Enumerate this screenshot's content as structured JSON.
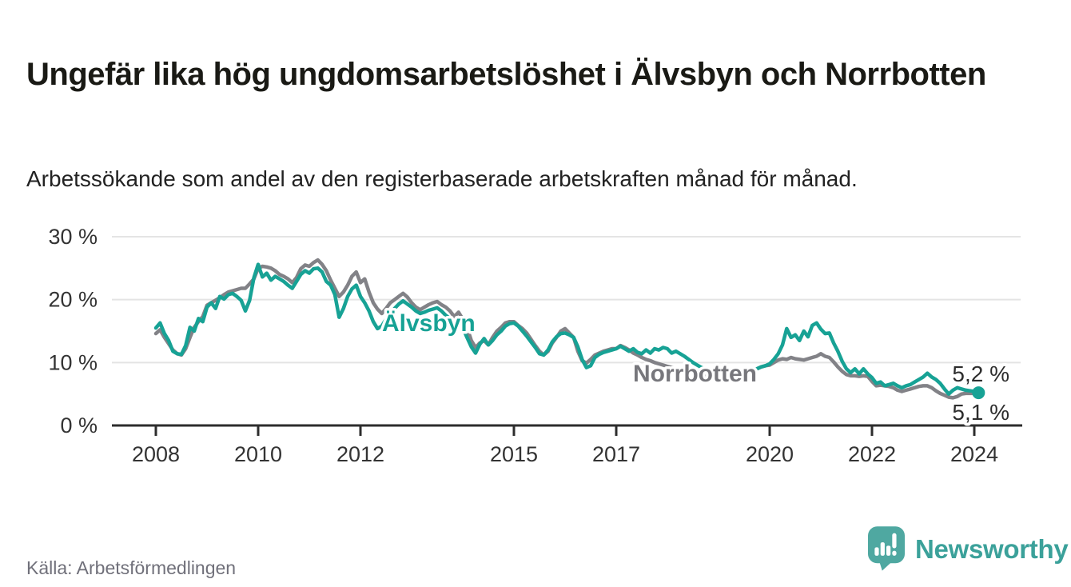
{
  "header": {
    "title": "Ungefär lika hög ungdomsarbetslöshet i Älvsbyn och Norrbotten",
    "subtitle": "Arbetssökande som andel av den registerbaserade arbetskraften månad för månad."
  },
  "footer": {
    "source": "Källa: Arbetsförmedlingen",
    "brand_name": "Newsworthy",
    "brand_logo_icon": "speech-bubble-bar-chart-icon"
  },
  "colors": {
    "alvsbyn_line": "#17a295",
    "norrbotten_line": "#828287",
    "norrbotten_label": "#77777c",
    "grid": "#e4e4e4",
    "axis": "#2d2d2d",
    "tick_text": "#333333",
    "logo_mark": "#4fa8a1",
    "logo_text": "#3ba19a"
  },
  "chart_data": {
    "type": "line",
    "title": "Ungefär lika hög ungdomsarbetslöshet i Älvsbyn och Norrbotten",
    "subtitle": "Arbetssökande som andel av den registerbaserade arbetskraften månad för månad.",
    "x_start": "2008-01",
    "x_end": "2024-02",
    "x_unit": "month",
    "ylim": [
      0,
      30
    ],
    "grid": "horizontal",
    "legend_position": "inline-labels",
    "y_ticks": [
      {
        "value": 0,
        "label": "0 %"
      },
      {
        "value": 10,
        "label": "10 %"
      },
      {
        "value": 20,
        "label": "20 %"
      },
      {
        "value": 30,
        "label": "30 %"
      }
    ],
    "x_ticks": [
      {
        "year": 2008,
        "label": "2008"
      },
      {
        "year": 2010,
        "label": "2010"
      },
      {
        "year": 2012,
        "label": "2012"
      },
      {
        "year": 2015,
        "label": "2015"
      },
      {
        "year": 2017,
        "label": "2017"
      },
      {
        "year": 2020,
        "label": "2020"
      },
      {
        "year": 2022,
        "label": "2022"
      },
      {
        "year": 2024,
        "label": "2024"
      }
    ],
    "series": [
      {
        "name": "Älvsbyn",
        "color": "#17a295",
        "end_label": "5,2 %",
        "end_value": 5.2,
        "values": [
          15.5,
          16.3,
          14.6,
          13.5,
          11.8,
          11.4,
          11.3,
          12.7,
          15.6,
          15.0,
          17.0,
          16.5,
          18.8,
          19.5,
          18.6,
          20.5,
          20.1,
          20.8,
          21.0,
          20.5,
          19.9,
          18.2,
          19.9,
          23.5,
          25.6,
          23.6,
          24.2,
          23.1,
          23.7,
          23.3,
          22.9,
          22.3,
          21.8,
          22.9,
          24.0,
          24.6,
          24.2,
          24.9,
          25.0,
          24.4,
          22.9,
          22.3,
          20.8,
          17.2,
          18.6,
          20.5,
          21.7,
          22.3,
          20.5,
          19.5,
          18.2,
          16.5,
          15.4,
          15.8,
          16.9,
          17.8,
          18.6,
          19.3,
          19.8,
          19.3,
          18.8,
          18.2,
          17.8,
          18.0,
          18.3,
          18.5,
          18.7,
          18.2,
          17.5,
          17.0,
          16.5,
          17.0,
          15.5,
          14.0,
          12.5,
          11.5,
          12.9,
          13.8,
          12.8,
          13.5,
          14.4,
          15.0,
          15.8,
          16.2,
          16.3,
          15.8,
          15.0,
          14.2,
          13.3,
          12.4,
          11.4,
          11.2,
          12.0,
          13.3,
          14.1,
          14.6,
          14.7,
          14.4,
          14.0,
          12.5,
          10.5,
          9.2,
          9.5,
          10.8,
          11.3,
          11.6,
          11.8,
          12.0,
          12.2,
          12.6,
          12.2,
          11.8,
          12.2,
          11.6,
          11.4,
          12.0,
          11.5,
          12.2,
          12.0,
          12.4,
          12.2,
          11.5,
          11.8,
          11.4,
          11.0,
          10.5,
          10.0,
          9.6,
          9.2,
          9.0,
          8.8,
          8.6,
          8.4,
          8.0,
          7.6,
          7.3,
          7.2,
          7.4,
          7.8,
          8.2,
          8.6,
          9.0,
          9.3,
          9.5,
          9.8,
          10.5,
          11.4,
          12.8,
          15.4,
          14.0,
          14.4,
          13.5,
          15.0,
          14.1,
          15.9,
          16.3,
          15.3,
          14.6,
          14.7,
          13.1,
          11.8,
          10.2,
          9.0,
          8.4,
          9.0,
          8.2,
          9.0,
          8.2,
          7.6,
          6.7,
          6.9,
          6.3,
          6.5,
          6.7,
          6.3,
          6.0,
          6.3,
          6.5,
          6.9,
          7.3,
          7.7,
          8.3,
          7.7,
          7.3,
          6.7,
          5.8,
          5.0,
          5.6,
          6.0,
          5.8,
          5.6,
          5.5,
          5.4,
          5.2
        ]
      },
      {
        "name": "Norrbotten",
        "color": "#828287",
        "end_label": "5,1 %",
        "end_value": 5.1,
        "values": [
          14.6,
          15.2,
          14.0,
          13.0,
          12.0,
          11.4,
          11.2,
          12.2,
          14.0,
          15.6,
          16.5,
          17.3,
          19.1,
          19.5,
          19.9,
          20.3,
          20.8,
          21.2,
          21.4,
          21.6,
          21.8,
          21.8,
          22.5,
          23.3,
          25.0,
          25.3,
          25.2,
          25.0,
          24.6,
          24.0,
          23.7,
          23.3,
          22.7,
          23.5,
          24.9,
          25.5,
          25.3,
          25.9,
          26.3,
          25.6,
          24.6,
          23.1,
          21.8,
          20.5,
          21.2,
          22.3,
          23.7,
          24.4,
          22.7,
          23.3,
          21.2,
          19.5,
          18.5,
          17.8,
          18.6,
          19.5,
          20.0,
          20.5,
          21.0,
          20.4,
          19.5,
          18.8,
          18.4,
          18.8,
          19.2,
          19.5,
          19.7,
          19.2,
          18.8,
          18.2,
          17.3,
          18.0,
          16.9,
          15.6,
          13.5,
          12.4,
          13.1,
          13.5,
          12.8,
          14.0,
          15.0,
          15.6,
          16.3,
          16.5,
          16.5,
          15.9,
          15.4,
          14.7,
          13.7,
          12.7,
          11.8,
          11.2,
          11.8,
          13.1,
          14.0,
          15.0,
          15.4,
          14.7,
          14.0,
          11.8,
          10.3,
          9.9,
          10.5,
          11.2,
          11.5,
          11.8,
          12.0,
          12.2,
          12.2,
          12.7,
          12.4,
          12.0,
          11.5,
          11.2,
          10.8,
          10.5,
          10.3,
          10.0,
          9.8,
          9.6,
          9.4,
          9.2,
          9.0,
          8.8,
          8.6,
          8.4,
          8.2,
          8.0,
          7.9,
          7.8,
          7.7,
          7.6,
          7.5,
          7.4,
          7.3,
          7.2,
          7.3,
          7.5,
          7.8,
          8.2,
          8.6,
          9.0,
          9.3,
          9.5,
          9.6,
          10.0,
          10.4,
          10.6,
          10.5,
          10.8,
          10.6,
          10.5,
          10.4,
          10.6,
          10.8,
          11.0,
          11.4,
          11.0,
          10.8,
          10.1,
          9.3,
          8.6,
          8.1,
          7.9,
          7.9,
          7.8,
          7.9,
          7.8,
          7.0,
          6.3,
          6.4,
          6.3,
          6.2,
          6.0,
          5.6,
          5.4,
          5.6,
          5.8,
          6.0,
          6.2,
          6.3,
          6.3,
          6.0,
          5.5,
          5.1,
          4.8,
          4.5,
          4.4,
          4.6,
          5.0,
          5.1,
          5.1,
          5.1,
          5.1
        ]
      }
    ]
  }
}
